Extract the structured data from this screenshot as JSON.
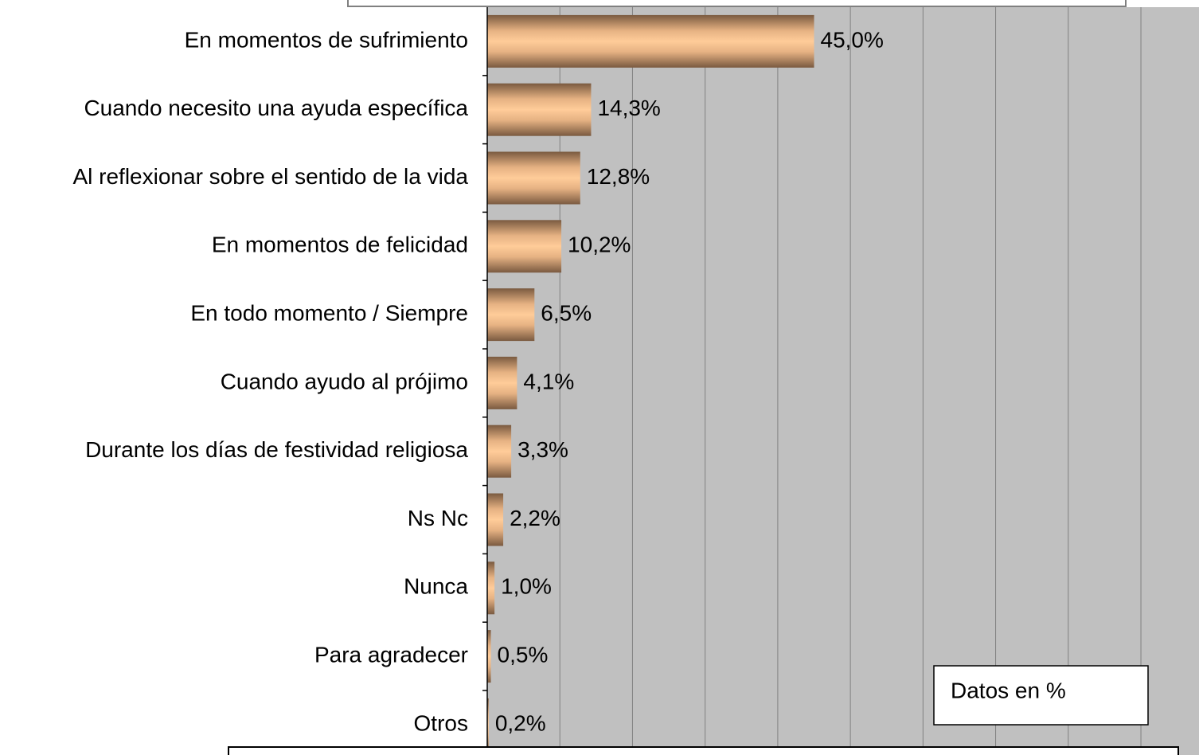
{
  "chart_data": {
    "type": "barh",
    "categories": [
      "En momentos de sufrimiento",
      "Cuando necesito una ayuda específica",
      "Al reflexionar sobre el sentido de la vida",
      "En momentos de felicidad",
      "En todo momento / Siempre",
      "Cuando ayudo al prójimo",
      "Durante los días de festividad religiosa",
      "Ns Nc",
      "Nunca",
      "Para agradecer",
      "Otros"
    ],
    "values": [
      45.0,
      14.3,
      12.8,
      10.2,
      6.5,
      4.1,
      3.3,
      2.2,
      1.0,
      0.5,
      0.2
    ],
    "value_labels": [
      "45,0%",
      "14,3%",
      "12,8%",
      "10,2%",
      "6,5%",
      "4,1%",
      "3,3%",
      "2,2%",
      "1,0%",
      "0,5%",
      "0,2%"
    ],
    "color": "#ffcc99",
    "xlim": [
      0,
      98
    ],
    "xticks": [
      0,
      10,
      20,
      30,
      40,
      50,
      60,
      70,
      80,
      90
    ],
    "grid": true,
    "annotation": "Datos en %"
  }
}
